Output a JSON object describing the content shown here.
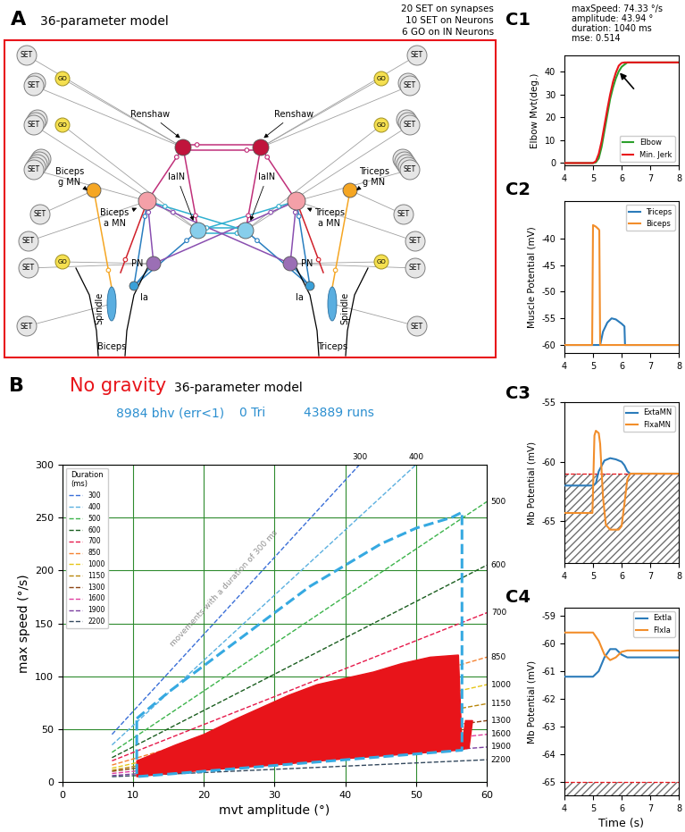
{
  "diagram": {
    "panel_label": "A",
    "title": "36-parameter model",
    "summary": [
      "20 SET on synapses",
      "10 SET on Neurons",
      "6 GO on IN Neurons"
    ],
    "set_label": "SET",
    "go_label": "GO",
    "neurons": {
      "renshaw": "Renshaw",
      "iain": "IaIN",
      "left_amn": "Biceps\na MN",
      "right_amn": "Triceps\na MN",
      "left_gmn": "Biceps\ng MN",
      "right_gmn": "Triceps\ng MN",
      "pn": "PN",
      "ia": "Ia",
      "spindle": "Spindle",
      "left_muscle": "Biceps",
      "right_muscle": "Triceps"
    }
  },
  "chart_data": [
    {
      "panel_label": "B",
      "type": "line",
      "title": "No gravity",
      "subtitle": "36-parameter model",
      "annotations": [
        "8984 bhv (err<1)",
        "0 Tri",
        "43889 runs",
        "movements with a duration of 300 ms"
      ],
      "x_label": "mvt amplitude (°)",
      "y_label": "max speed (°/s)",
      "xlim": [
        0,
        60
      ],
      "ylim": [
        0,
        300
      ],
      "xticks": [
        0,
        10,
        20,
        30,
        40,
        50,
        60
      ],
      "yticks": [
        0,
        50,
        100,
        150,
        200,
        250,
        300
      ],
      "grid": true,
      "legend": "upper left",
      "legend_title": "Duration\n(ms)",
      "series": [
        {
          "name": "300",
          "color": "#3a6fd8",
          "line_style": "dashed",
          "x": [
            7,
            42
          ],
          "values": [
            45,
            300
          ]
        },
        {
          "name": "400",
          "color": "#5bb0e0",
          "line_style": "dashed",
          "x": [
            7,
            50
          ],
          "values": [
            35,
            300
          ]
        },
        {
          "name": "500",
          "color": "#3cb44b",
          "line_style": "dashed",
          "x": [
            7,
            60
          ],
          "values": [
            28,
            265
          ]
        },
        {
          "name": "600",
          "color": "#1b5e20",
          "line_style": "dashed",
          "x": [
            7,
            60
          ],
          "values": [
            23,
            205
          ]
        },
        {
          "name": "700",
          "color": "#e6194b",
          "line_style": "dashed",
          "x": [
            7,
            60
          ],
          "values": [
            20,
            160
          ]
        },
        {
          "name": "850",
          "color": "#f58231",
          "line_style": "dashed",
          "x": [
            7,
            60
          ],
          "values": [
            16,
            118
          ]
        },
        {
          "name": "1000",
          "color": "#e6c619",
          "line_style": "dashed",
          "x": [
            7,
            60
          ],
          "values": [
            13,
            92
          ]
        },
        {
          "name": "1150",
          "color": "#b8860b",
          "line_style": "dashed",
          "x": [
            7,
            60
          ],
          "values": [
            11,
            74
          ]
        },
        {
          "name": "1300",
          "color": "#8b4513",
          "line_style": "dashed",
          "x": [
            7,
            60
          ],
          "values": [
            10,
            58
          ]
        },
        {
          "name": "1600",
          "color": "#e040a0",
          "line_style": "dashed",
          "x": [
            7,
            60
          ],
          "values": [
            8,
            45
          ]
        },
        {
          "name": "1900",
          "color": "#7b3fa0",
          "line_style": "dashed",
          "x": [
            7,
            60
          ],
          "values": [
            6,
            33
          ]
        },
        {
          "name": "2200",
          "color": "#34495e",
          "line_style": "dashed",
          "x": [
            7,
            60
          ],
          "values": [
            5,
            21
          ]
        }
      ],
      "boundary": {
        "color": "#36a9e1",
        "line_style": "dashed",
        "x": [
          10.5,
          15,
          20,
          25,
          30,
          35,
          40,
          45,
          50,
          55,
          56.5,
          56.5,
          10.5,
          10.5
        ],
        "y": [
          60,
          85,
          110,
          135,
          160,
          185,
          205,
          225,
          240,
          250,
          255,
          30,
          5,
          60
        ]
      },
      "cloud": {
        "color": "#e8141a",
        "x": [
          10.5,
          20,
          30,
          40,
          50,
          56,
          57.5,
          58,
          57,
          56.5,
          56,
          52,
          48,
          44,
          40,
          36,
          32,
          28,
          24,
          20,
          16,
          12,
          10.5
        ],
        "y": [
          5,
          11,
          16,
          22,
          27,
          30,
          32,
          58,
          58,
          35,
          120,
          118,
          112,
          104,
          98,
          92,
          82,
          70,
          58,
          45,
          35,
          24,
          20
        ]
      }
    },
    {
      "panel_label": "C1",
      "type": "line",
      "annotations": [
        "maxSpeed: 74.33 °/s",
        "amplitude: 43.94 °",
        "duration: 1040 ms",
        "mse: 0.514"
      ],
      "y_label": "Elbow Mvt(deg.)",
      "xlim": [
        4,
        8
      ],
      "ylim": [
        -1,
        47
      ],
      "xticks": [
        4,
        5,
        6,
        7,
        8
      ],
      "yticks": [
        0,
        10,
        20,
        30,
        40
      ],
      "legend": "lower right",
      "series": [
        {
          "name": "Elbow",
          "color": "#2ca02c",
          "x": [
            4,
            5,
            5.1,
            5.2,
            5.3,
            5.4,
            5.5,
            5.6,
            5.7,
            5.8,
            5.9,
            6.0,
            6.1,
            6.2,
            8
          ],
          "values": [
            0,
            0,
            0.3,
            2,
            7,
            14,
            21,
            28,
            33,
            37,
            40,
            42,
            43,
            43.9,
            43.94
          ]
        },
        {
          "name": "Min. Jerk",
          "color": "#e8141a",
          "x": [
            4,
            5,
            5.1,
            5.2,
            5.3,
            5.4,
            5.5,
            5.6,
            5.7,
            5.8,
            5.9,
            6.0,
            6.1,
            6.2,
            8
          ],
          "values": [
            0,
            0,
            0.8,
            4,
            9.5,
            16.5,
            23.5,
            30,
            35.5,
            39.5,
            42.5,
            43.7,
            43.94,
            43.94,
            43.94
          ]
        }
      ]
    },
    {
      "panel_label": "C2",
      "type": "line",
      "y_label": "Muscle Potential (mV)",
      "xlim": [
        4,
        8
      ],
      "ylim": [
        -61.5,
        -33
      ],
      "xticks": [
        4,
        5,
        6,
        7,
        8
      ],
      "yticks": [
        -60,
        -55,
        -50,
        -45,
        -40
      ],
      "legend": "upper right",
      "series": [
        {
          "name": "Triceps",
          "color": "#2b7bba",
          "x": [
            4,
            5.25,
            5.35,
            5.5,
            5.65,
            5.8,
            6.0,
            6.1,
            6.12,
            8
          ],
          "values": [
            -60,
            -60,
            -57.5,
            -55.8,
            -55,
            -55.2,
            -56,
            -56.5,
            -60,
            -60
          ]
        },
        {
          "name": "Biceps",
          "color": "#f28e2b",
          "x": [
            4,
            4.97,
            5.0,
            5.1,
            5.2,
            5.22,
            5.25,
            8
          ],
          "values": [
            -60,
            -60,
            -37.5,
            -37.8,
            -38.3,
            -38.5,
            -60,
            -60
          ]
        }
      ]
    },
    {
      "panel_label": "C3",
      "type": "line",
      "y_label": "Mb Potential (mV)",
      "xlim": [
        4,
        8
      ],
      "ylim": [
        -68.5,
        -55
      ],
      "xticks": [
        4,
        5,
        6,
        7,
        8
      ],
      "yticks": [
        -65,
        -60,
        -55
      ],
      "legend": "upper right",
      "threshold": {
        "value": -61,
        "color": "#e8141a",
        "line_style": "dashed"
      },
      "series": [
        {
          "name": "ExtaMN",
          "color": "#2b7bba",
          "x": [
            4,
            5.0,
            5.1,
            5.2,
            5.4,
            5.6,
            5.8,
            6.0,
            6.1,
            6.2,
            6.3,
            8
          ],
          "values": [
            -62,
            -62,
            -61.8,
            -60.8,
            -59.9,
            -59.7,
            -59.8,
            -60.0,
            -60.3,
            -60.8,
            -61,
            -61
          ]
        },
        {
          "name": "FlxaMN",
          "color": "#f28e2b",
          "x": [
            4,
            4.98,
            5.05,
            5.1,
            5.2,
            5.25,
            5.35,
            5.45,
            5.6,
            5.9,
            6.0,
            6.1,
            6.2,
            6.3,
            8
          ],
          "values": [
            -64.3,
            -64.3,
            -57.8,
            -57.4,
            -57.6,
            -58.5,
            -63,
            -65.3,
            -65.7,
            -65.7,
            -65.4,
            -63.5,
            -61.5,
            -61,
            -61
          ]
        }
      ]
    },
    {
      "panel_label": "C4",
      "type": "line",
      "y_label": "Mb Potential (mV)",
      "x_label": "Time (s)",
      "xlim": [
        4,
        8
      ],
      "ylim": [
        -65.5,
        -58.7
      ],
      "xticks": [
        4,
        5,
        6,
        7,
        8
      ],
      "yticks": [
        -65,
        -64,
        -63,
        -62,
        -61,
        -60,
        -59
      ],
      "legend": "upper right",
      "threshold": {
        "value": -65,
        "color": "#e8141a",
        "line_style": "dashed"
      },
      "series": [
        {
          "name": "ExtIa",
          "color": "#2b7bba",
          "x": [
            4,
            5.0,
            5.2,
            5.4,
            5.6,
            5.8,
            6.0,
            6.2,
            6.4,
            8
          ],
          "values": [
            -61.2,
            -61.2,
            -61.0,
            -60.5,
            -60.2,
            -60.2,
            -60.4,
            -60.5,
            -60.5,
            -60.5
          ]
        },
        {
          "name": "FlxIa",
          "color": "#f28e2b",
          "x": [
            4,
            5.0,
            5.2,
            5.4,
            5.6,
            5.8,
            6.0,
            6.2,
            8
          ],
          "values": [
            -59.6,
            -59.6,
            -59.9,
            -60.4,
            -60.6,
            -60.5,
            -60.3,
            -60.25,
            -60.25
          ]
        }
      ]
    }
  ]
}
